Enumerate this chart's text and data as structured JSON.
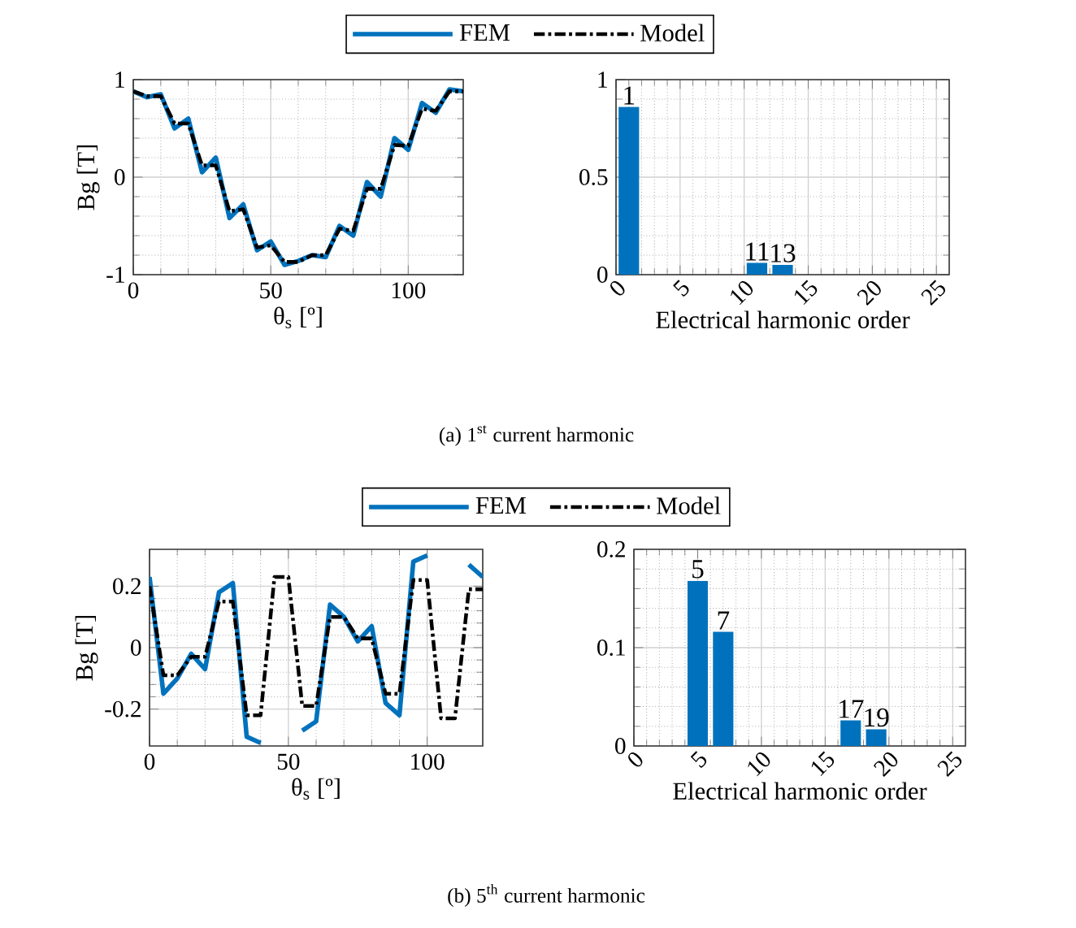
{
  "chart_data": [
    {
      "type": "line",
      "xlabel": "θ$_{s}$ [º]",
      "ylabel": "Bg [T]",
      "x": [
        0,
        5,
        10,
        15,
        20,
        25,
        30,
        35,
        40,
        45,
        50,
        55,
        60,
        65,
        70,
        75,
        80,
        85,
        90,
        95,
        100,
        105,
        110,
        115,
        120
      ],
      "series": [
        {
          "name": "FEM",
          "color": "#0072bd",
          "line_style": "solid",
          "values": [
            0.88,
            0.82,
            0.85,
            0.5,
            0.6,
            0.05,
            0.2,
            -0.42,
            -0.28,
            -0.75,
            -0.66,
            -0.9,
            -0.86,
            -0.8,
            -0.82,
            -0.5,
            -0.6,
            -0.05,
            -0.2,
            0.4,
            0.28,
            0.76,
            0.66,
            0.9,
            0.88
          ]
        },
        {
          "name": "Model",
          "color": "#000000",
          "line_style": "dashed",
          "values": [
            0.88,
            0.83,
            0.83,
            0.55,
            0.55,
            0.12,
            0.12,
            -0.35,
            -0.33,
            -0.72,
            -0.7,
            -0.87,
            -0.87,
            -0.8,
            -0.8,
            -0.53,
            -0.55,
            -0.12,
            -0.12,
            0.33,
            0.32,
            0.7,
            0.68,
            0.88,
            0.88
          ]
        }
      ],
      "xlim": [
        0,
        120
      ],
      "xticks": [
        0,
        50,
        100
      ],
      "ylim": [
        -1,
        1
      ],
      "yticks": [
        -1,
        0,
        1
      ],
      "grid": true,
      "legend": "top",
      "annotations": [
        "(a) 1$^{st}$ current harmonic"
      ]
    },
    {
      "type": "bar",
      "xlabel": "Electrical harmonic order",
      "x": [
        1,
        11,
        13
      ],
      "values": [
        0.86,
        0.06,
        0.05
      ],
      "color": "#0072bd",
      "xlim": [
        0,
        26
      ],
      "xticks": [
        0,
        5,
        10,
        15,
        20,
        25
      ],
      "ylim": [
        0,
        1
      ],
      "yticks": [
        0,
        0.5,
        1
      ],
      "grid": true,
      "annotations": [
        {
          "text": "1",
          "x": 1,
          "y": 0.86
        },
        {
          "text": "11",
          "x": 11,
          "y": 0.06
        },
        {
          "text": "13",
          "x": 13,
          "y": 0.05
        }
      ]
    },
    {
      "type": "line",
      "xlabel": "θ$_{s}$ [º]",
      "ylabel": "Bg [T]",
      "x": [
        0,
        5,
        10,
        15,
        20,
        25,
        30,
        35,
        40,
        45,
        50,
        55,
        60,
        65,
        70,
        75,
        80,
        85,
        90,
        95,
        100,
        105,
        110,
        115,
        120
      ],
      "series": [
        {
          "name": "FEM",
          "color": "#0072bd",
          "line_style": "solid",
          "values": [
            0.23,
            -0.15,
            -0.1,
            -0.02,
            -0.07,
            0.18,
            0.21,
            -0.29,
            -0.31,
            null,
            null,
            -0.27,
            -0.24,
            0.14,
            0.1,
            0.02,
            0.07,
            -0.18,
            -0.22,
            0.28,
            0.3,
            null,
            null,
            0.27,
            0.23
          ]
        },
        {
          "name": "Model",
          "color": "#000000",
          "line_style": "dashed",
          "values": [
            0.2,
            -0.09,
            -0.09,
            -0.03,
            -0.03,
            0.15,
            0.15,
            -0.22,
            -0.22,
            0.23,
            0.23,
            -0.19,
            -0.19,
            0.1,
            0.1,
            0.03,
            0.03,
            -0.15,
            -0.15,
            0.22,
            0.22,
            -0.23,
            -0.23,
            0.19,
            0.19
          ]
        }
      ],
      "xlim": [
        0,
        120
      ],
      "xticks": [
        0,
        50,
        100
      ],
      "ylim": [
        -0.32,
        0.32
      ],
      "yticks": [
        -0.2,
        0,
        0.2
      ],
      "grid": true,
      "legend": "top",
      "annotations": [
        "(b) 5$^{th}$ current harmonic"
      ]
    },
    {
      "type": "bar",
      "xlabel": "Electrical harmonic order",
      "x": [
        5,
        7,
        17,
        19
      ],
      "values": [
        0.168,
        0.116,
        0.026,
        0.017
      ],
      "color": "#0072bd",
      "xlim": [
        0,
        26
      ],
      "xticks": [
        0,
        5,
        10,
        15,
        20,
        25
      ],
      "ylim": [
        0,
        0.2
      ],
      "yticks": [
        0,
        0.1,
        0.2
      ],
      "grid": true,
      "annotations": [
        {
          "text": "5",
          "x": 5,
          "y": 0.168
        },
        {
          "text": "7",
          "x": 7,
          "y": 0.116
        },
        {
          "text": "17",
          "x": 17,
          "y": 0.026
        },
        {
          "text": "19",
          "x": 19,
          "y": 0.017
        }
      ]
    }
  ]
}
